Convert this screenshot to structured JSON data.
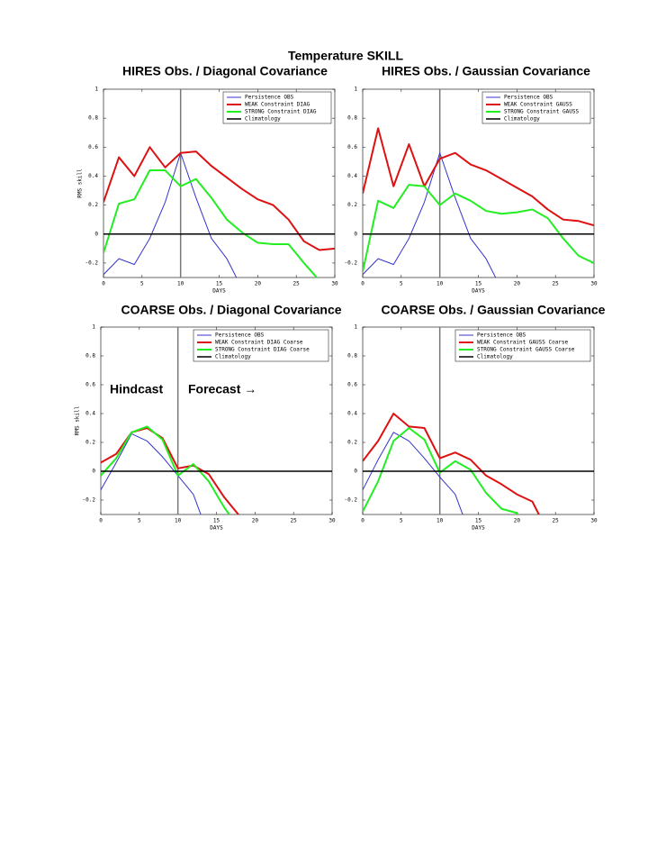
{
  "title": "Temperature SKILL",
  "chart_data": [
    {
      "type": "line",
      "title": "HIRES Obs. / Diagonal Covariance",
      "xlabel": "DAYS",
      "ylabel": "RMS skill",
      "x": [
        0,
        2,
        4,
        6,
        8,
        10,
        12,
        14,
        16,
        18,
        20,
        22,
        24,
        26,
        28,
        30
      ],
      "xlim": [
        0,
        30
      ],
      "xticks": [
        0,
        5,
        10,
        15,
        20,
        25,
        30
      ],
      "ylim": [
        -0.3,
        1
      ],
      "yticks": [
        -0.2,
        0,
        0.2,
        0.4,
        0.6,
        0.8,
        1
      ],
      "vline": 10,
      "vline_color": "#777777",
      "legend": "upper right",
      "series": [
        {
          "name": "Persistence OBS",
          "color": "#3333cc",
          "width": 1,
          "values": [
            -0.28,
            -0.17,
            -0.21,
            -0.03,
            0.22,
            0.56,
            0.25,
            -0.03,
            -0.17,
            -0.38,
            null,
            null,
            null,
            null,
            null,
            null
          ]
        },
        {
          "name": "WEAK Constraint DIAG",
          "color": "#dd1111",
          "width": 2,
          "values": [
            0.22,
            0.53,
            0.4,
            0.6,
            0.46,
            0.56,
            0.57,
            0.47,
            0.39,
            0.31,
            0.24,
            0.2,
            0.1,
            -0.05,
            -0.11,
            -0.1
          ]
        },
        {
          "name": "STRONG Constraint DIAG",
          "color": "#22ee22",
          "width": 2,
          "values": [
            -0.13,
            0.21,
            0.24,
            0.44,
            0.44,
            0.33,
            0.38,
            0.25,
            0.1,
            0.01,
            -0.06,
            -0.07,
            -0.07,
            -0.2,
            -0.32,
            null
          ]
        },
        {
          "name": "Climatology",
          "color": "#000000",
          "width": 1.5,
          "values": [
            0,
            0,
            0,
            0,
            0,
            0,
            0,
            0,
            0,
            0,
            0,
            0,
            0,
            0,
            0,
            0
          ]
        }
      ]
    },
    {
      "type": "line",
      "title": "HIRES Obs. / Gaussian Covariance",
      "xlabel": "DAYS",
      "x": [
        0,
        2,
        4,
        6,
        8,
        10,
        12,
        14,
        16,
        18,
        20,
        22,
        24,
        26,
        28,
        30
      ],
      "xlim": [
        0,
        30
      ],
      "xticks": [
        0,
        5,
        10,
        15,
        20,
        25,
        30
      ],
      "ylim": [
        -0.3,
        1
      ],
      "yticks": [
        -0.2,
        0,
        0.2,
        0.4,
        0.6,
        0.8,
        1
      ],
      "vline": 10,
      "vline_color": "#777777",
      "legend": "upper right",
      "series": [
        {
          "name": "Persistence OBS",
          "color": "#3333cc",
          "width": 1,
          "values": [
            -0.28,
            -0.17,
            -0.21,
            -0.03,
            0.22,
            0.56,
            0.25,
            -0.03,
            -0.17,
            -0.38,
            null,
            null,
            null,
            null,
            null,
            null
          ]
        },
        {
          "name": "WEAK Constraint GAUSS",
          "color": "#dd1111",
          "width": 2,
          "values": [
            0.28,
            0.73,
            0.33,
            0.62,
            0.33,
            0.52,
            0.56,
            0.48,
            0.44,
            0.38,
            0.32,
            0.26,
            0.17,
            0.1,
            0.09,
            0.06
          ]
        },
        {
          "name": "STRONG Constraint GAUSS",
          "color": "#22ee22",
          "width": 2,
          "values": [
            -0.26,
            0.23,
            0.18,
            0.34,
            0.33,
            0.2,
            0.28,
            0.23,
            0.16,
            0.14,
            0.15,
            0.17,
            0.11,
            -0.03,
            -0.15,
            -0.2
          ]
        },
        {
          "name": "Climatology",
          "color": "#000000",
          "width": 1.5,
          "values": [
            0,
            0,
            0,
            0,
            0,
            0,
            0,
            0,
            0,
            0,
            0,
            0,
            0,
            0,
            0,
            0
          ]
        }
      ]
    },
    {
      "type": "line",
      "title": "COARSE Obs. / Diagonal Covariance",
      "xlabel": "DAYS",
      "ylabel": "RMS skill",
      "annotations": [
        "Hindcast",
        "Forecast →"
      ],
      "x": [
        0,
        2,
        4,
        6,
        8,
        10,
        12,
        14,
        16,
        18,
        20,
        22,
        24,
        26,
        28,
        30
      ],
      "xlim": [
        0,
        30
      ],
      "xticks": [
        0,
        5,
        10,
        15,
        20,
        25,
        30
      ],
      "ylim": [
        -0.3,
        1
      ],
      "yticks": [
        -0.2,
        0,
        0.2,
        0.4,
        0.6,
        0.8,
        1
      ],
      "vline": 10,
      "vline_color": "#777777",
      "legend": "upper right",
      "series": [
        {
          "name": "Persistence OBS",
          "color": "#3333cc",
          "width": 1,
          "values": [
            -0.13,
            0.06,
            0.26,
            0.21,
            0.1,
            -0.03,
            -0.16,
            -0.45,
            null,
            null,
            null,
            null,
            null,
            null,
            null,
            null
          ]
        },
        {
          "name": "WEAK Constraint DIAG Coarse",
          "color": "#dd1111",
          "width": 2,
          "values": [
            0.06,
            0.12,
            0.27,
            0.3,
            0.23,
            0.02,
            0.04,
            -0.02,
            -0.18,
            -0.31,
            null,
            null,
            null,
            null,
            null,
            null
          ]
        },
        {
          "name": "STRONG Constraint DIAG Coarse",
          "color": "#22ee22",
          "width": 2,
          "values": [
            -0.03,
            0.09,
            0.27,
            0.31,
            0.22,
            -0.03,
            0.05,
            -0.07,
            -0.25,
            -0.4,
            null,
            null,
            null,
            null,
            null,
            null
          ]
        },
        {
          "name": "Climatology",
          "color": "#000000",
          "width": 1.5,
          "values": [
            0,
            0,
            0,
            0,
            0,
            0,
            0,
            0,
            0,
            0,
            0,
            0,
            0,
            0,
            0,
            0
          ]
        }
      ]
    },
    {
      "type": "line",
      "title": "COARSE Obs. / Gaussian Covariance",
      "xlabel": "DAYS",
      "x": [
        0,
        2,
        4,
        6,
        8,
        10,
        12,
        14,
        16,
        18,
        20,
        22,
        24,
        26,
        28,
        30
      ],
      "xlim": [
        0,
        30
      ],
      "xticks": [
        0,
        5,
        10,
        15,
        20,
        25,
        30
      ],
      "ylim": [
        -0.3,
        1
      ],
      "yticks": [
        -0.2,
        0,
        0.2,
        0.4,
        0.6,
        0.8,
        1
      ],
      "vline": 10,
      "vline_color": "#777777",
      "legend": "upper right",
      "series": [
        {
          "name": "Persistence OBS",
          "color": "#3333cc",
          "width": 1,
          "values": [
            -0.13,
            0.08,
            0.27,
            0.21,
            0.09,
            -0.04,
            -0.16,
            -0.45,
            null,
            null,
            null,
            null,
            null,
            null,
            null,
            null
          ]
        },
        {
          "name": "WEAK Constraint GAUSS Coarse",
          "color": "#dd1111",
          "width": 2,
          "values": [
            0.07,
            0.21,
            0.4,
            0.31,
            0.3,
            0.09,
            0.13,
            0.08,
            -0.03,
            -0.09,
            -0.16,
            -0.21,
            -0.42,
            null,
            null,
            null
          ]
        },
        {
          "name": "STRONG Constraint GAUSS Coarse",
          "color": "#22ee22",
          "width": 2,
          "values": [
            -0.28,
            -0.07,
            0.21,
            0.3,
            0.22,
            -0.01,
            0.07,
            0.01,
            -0.15,
            -0.26,
            -0.29,
            -0.45,
            null,
            null,
            null,
            null
          ]
        },
        {
          "name": "Climatology",
          "color": "#000000",
          "width": 1.5,
          "values": [
            0,
            0,
            0,
            0,
            0,
            0,
            0,
            0,
            0,
            0,
            0,
            0,
            0,
            0,
            0,
            0
          ]
        }
      ]
    }
  ]
}
